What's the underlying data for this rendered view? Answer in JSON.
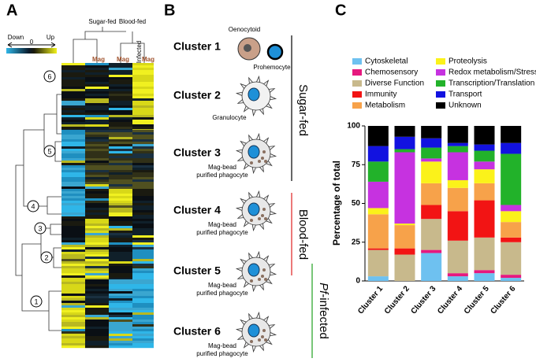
{
  "panel_a": {
    "label": "A",
    "groups": [
      "Sugar-fed",
      "Blood-fed"
    ],
    "column_tags": [
      "Mag",
      "Mag",
      "Mag"
    ],
    "infected_tag": "Infected",
    "scale": {
      "low": "Down",
      "mid": "0",
      "high": "Up"
    },
    "clusters": [
      "6",
      "5",
      "4",
      "3",
      "2",
      "1"
    ]
  },
  "panel_b": {
    "label": "B",
    "clusters": [
      {
        "name": "Cluster 1",
        "cells": [
          "Oenocytoid",
          "Prohemocyte"
        ]
      },
      {
        "name": "Cluster 2",
        "cells": [
          "Granulocyte"
        ]
      },
      {
        "name": "Cluster 3",
        "cells": [
          "Mag-bead",
          "purified phagocyte"
        ]
      },
      {
        "name": "Cluster 4",
        "cells": [
          "Mag-bead",
          "purified phagocyte"
        ]
      },
      {
        "name": "Cluster 5",
        "cells": [
          "Mag-bead",
          "purified phagocyte"
        ]
      },
      {
        "name": "Cluster 6",
        "cells": [
          "Mag-bead",
          "purified phagocyte"
        ]
      }
    ],
    "conditions": [
      "Sugar-fed",
      "Blood-fed",
      {
        "italic": "Pf",
        "rest": "-infected"
      }
    ]
  },
  "chart_data": {
    "type": "stacked_bar",
    "label": "C",
    "y_label": "Percentage of total",
    "categories": [
      "Cluster 1",
      "Cluster 2",
      "Cluster 3",
      "Cluster 4",
      "Cluster 5",
      "Cluster 6"
    ],
    "series": [
      {
        "name": "Cytoskeletal",
        "color": "#6ec1f0",
        "values": [
          3,
          0,
          18,
          3,
          5,
          2
        ]
      },
      {
        "name": "Chemosensory",
        "color": "#e6197f",
        "values": [
          0,
          0,
          2,
          2,
          2,
          2
        ]
      },
      {
        "name": "Diverse Function",
        "color": "#c8b98c",
        "values": [
          17,
          17,
          20,
          21,
          21,
          21
        ]
      },
      {
        "name": "Immunity",
        "color": "#f21414",
        "values": [
          1,
          4,
          9,
          19,
          24,
          3
        ]
      },
      {
        "name": "Metabolism",
        "color": "#f7a24a",
        "values": [
          22,
          15,
          14,
          15,
          11,
          10
        ]
      },
      {
        "name": "Proteolysis",
        "color": "#fbf21a",
        "values": [
          4,
          1,
          14,
          5,
          9,
          7
        ]
      },
      {
        "name": "Redox metabolism/Stress",
        "color": "#c632e0",
        "values": [
          17,
          46,
          2,
          18,
          5,
          4
        ]
      },
      {
        "name": "Transcription/Translation",
        "color": "#22b22a",
        "values": [
          13,
          2,
          7,
          4,
          7,
          33
        ]
      },
      {
        "name": "Transport",
        "color": "#1212e0",
        "values": [
          10,
          8,
          6,
          2,
          4,
          7
        ]
      },
      {
        "name": "Unknown",
        "color": "#000000",
        "values": [
          13,
          7,
          8,
          11,
          12,
          11
        ]
      }
    ],
    "ylim": [
      0,
      100
    ],
    "yticks": [
      0,
      25,
      50,
      75,
      100
    ]
  }
}
